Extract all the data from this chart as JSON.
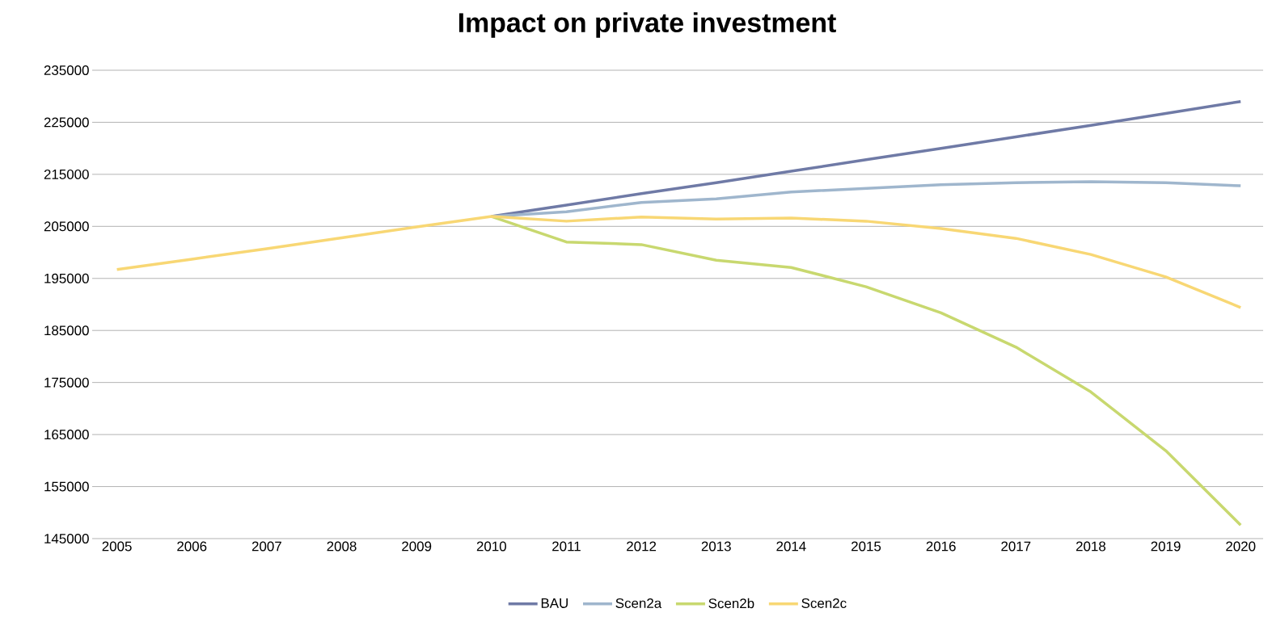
{
  "chart_data": {
    "type": "line",
    "title": "Impact on private investment",
    "categories": [
      "2005",
      "2006",
      "2007",
      "2008",
      "2009",
      "2010",
      "2011",
      "2012",
      "2013",
      "2014",
      "2015",
      "2016",
      "2017",
      "2018",
      "2019",
      "2020"
    ],
    "series": [
      {
        "name": "BAU",
        "color": "#6f7aa6",
        "values": [
          null,
          null,
          null,
          null,
          null,
          206900,
          209100,
          211300,
          213400,
          215600,
          217800,
          220000,
          222200,
          224400,
          226700,
          229000
        ]
      },
      {
        "name": "Scen2a",
        "color": "#9fb6cd",
        "values": [
          null,
          null,
          null,
          null,
          null,
          206900,
          207800,
          209600,
          210300,
          211600,
          212300,
          213000,
          213400,
          213600,
          213400,
          212800
        ]
      },
      {
        "name": "Scen2b",
        "color": "#c8d86f",
        "values": [
          null,
          null,
          null,
          null,
          null,
          206900,
          202000,
          201500,
          198500,
          197100,
          193400,
          188400,
          181800,
          173200,
          161900,
          147600
        ]
      },
      {
        "name": "Scen2c",
        "color": "#f8d774",
        "values": [
          196700,
          198700,
          200700,
          202800,
          204900,
          206900,
          206000,
          206800,
          206400,
          206600,
          206000,
          204600,
          202700,
          199600,
          195300,
          189400
        ]
      }
    ],
    "ylim": [
      145000,
      235000
    ],
    "yticks": [
      145000,
      155000,
      165000,
      175000,
      185000,
      195000,
      205000,
      215000,
      225000,
      235000
    ],
    "grid": "y",
    "legend": "bottom",
    "marker": "none",
    "line_style": "solid"
  }
}
